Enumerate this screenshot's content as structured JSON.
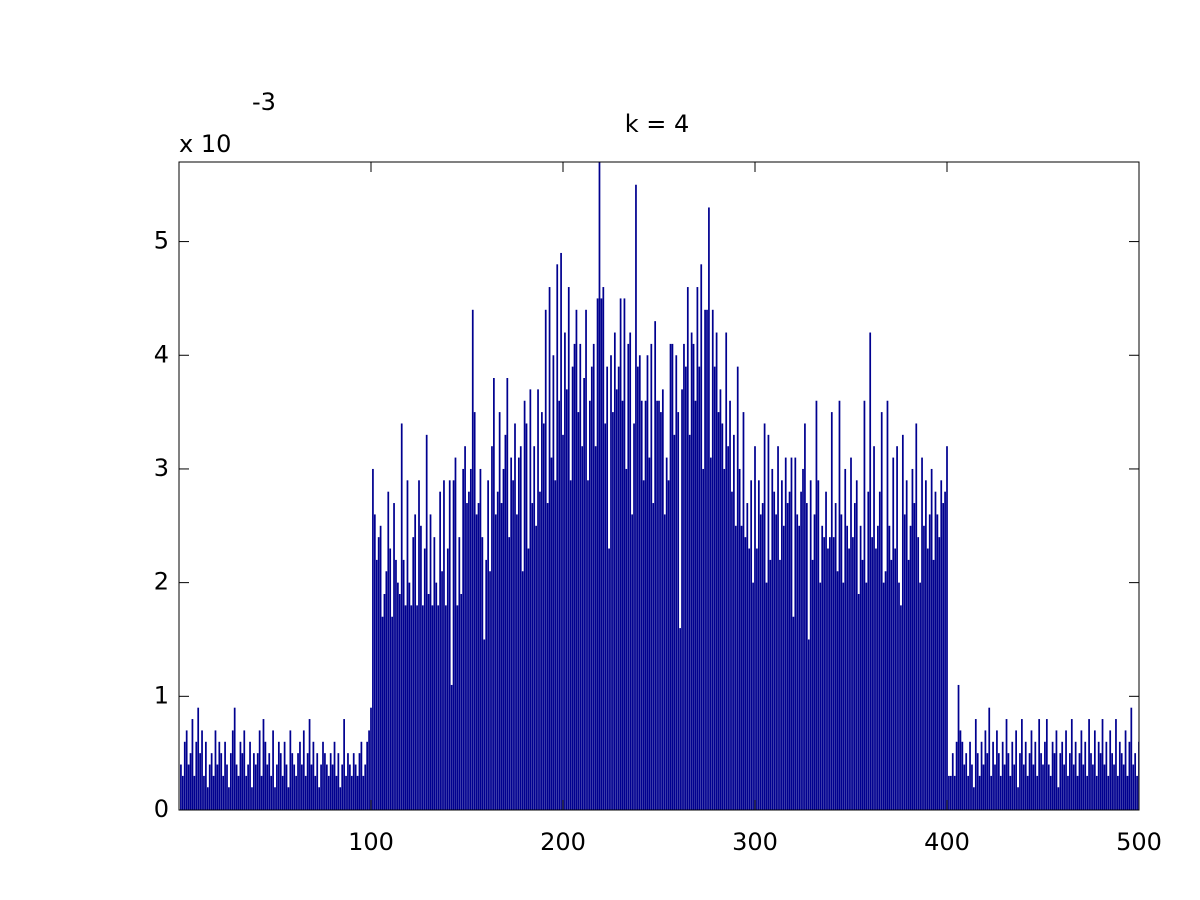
{
  "chart_data": {
    "type": "bar",
    "title": "k = 4",
    "scale_label": "x 10",
    "scale_exponent": "-3",
    "color": "#00008f",
    "x": [
      1,
      2,
      3,
      4,
      5,
      6,
      7,
      8,
      9,
      10,
      11,
      12,
      13,
      14,
      15,
      16,
      17,
      18,
      19,
      20,
      21,
      22,
      23,
      24,
      25,
      26,
      27,
      28,
      29,
      30,
      31,
      32,
      33,
      34,
      35,
      36,
      37,
      38,
      39,
      40,
      41,
      42,
      43,
      44,
      45,
      46,
      47,
      48,
      49,
      50,
      51,
      52,
      53,
      54,
      55,
      56,
      57,
      58,
      59,
      60,
      61,
      62,
      63,
      64,
      65,
      66,
      67,
      68,
      69,
      70,
      71,
      72,
      73,
      74,
      75,
      76,
      77,
      78,
      79,
      80,
      81,
      82,
      83,
      84,
      85,
      86,
      87,
      88,
      89,
      90,
      91,
      92,
      93,
      94,
      95,
      96,
      97,
      98,
      99,
      100,
      101,
      102,
      103,
      104,
      105,
      106,
      107,
      108,
      109,
      110,
      111,
      112,
      113,
      114,
      115,
      116,
      117,
      118,
      119,
      120,
      121,
      122,
      123,
      124,
      125,
      126,
      127,
      128,
      129,
      130,
      131,
      132,
      133,
      134,
      135,
      136,
      137,
      138,
      139,
      140,
      141,
      142,
      143,
      144,
      145,
      146,
      147,
      148,
      149,
      150,
      151,
      152,
      153,
      154,
      155,
      156,
      157,
      158,
      159,
      160,
      161,
      162,
      163,
      164,
      165,
      166,
      167,
      168,
      169,
      170,
      171,
      172,
      173,
      174,
      175,
      176,
      177,
      178,
      179,
      180,
      181,
      182,
      183,
      184,
      185,
      186,
      187,
      188,
      189,
      190,
      191,
      192,
      193,
      194,
      195,
      196,
      197,
      198,
      199,
      200,
      201,
      202,
      203,
      204,
      205,
      206,
      207,
      208,
      209,
      210,
      211,
      212,
      213,
      214,
      215,
      216,
      217,
      218,
      219,
      220,
      221,
      222,
      223,
      224,
      225,
      226,
      227,
      228,
      229,
      230,
      231,
      232,
      233,
      234,
      235,
      236,
      237,
      238,
      239,
      240,
      241,
      242,
      243,
      244,
      245,
      246,
      247,
      248,
      249,
      250,
      251,
      252,
      253,
      254,
      255,
      256,
      257,
      258,
      259,
      260,
      261,
      262,
      263,
      264,
      265,
      266,
      267,
      268,
      269,
      270,
      271,
      272,
      273,
      274,
      275,
      276,
      277,
      278,
      279,
      280,
      281,
      282,
      283,
      284,
      285,
      286,
      287,
      288,
      289,
      290,
      291,
      292,
      293,
      294,
      295,
      296,
      297,
      298,
      299,
      300,
      301,
      302,
      303,
      304,
      305,
      306,
      307,
      308,
      309,
      310,
      311,
      312,
      313,
      314,
      315,
      316,
      317,
      318,
      319,
      320,
      321,
      322,
      323,
      324,
      325,
      326,
      327,
      328,
      329,
      330,
      331,
      332,
      333,
      334,
      335,
      336,
      337,
      338,
      339,
      340,
      341,
      342,
      343,
      344,
      345,
      346,
      347,
      348,
      349,
      350,
      351,
      352,
      353,
      354,
      355,
      356,
      357,
      358,
      359,
      360,
      361,
      362,
      363,
      364,
      365,
      366,
      367,
      368,
      369,
      370,
      371,
      372,
      373,
      374,
      375,
      376,
      377,
      378,
      379,
      380,
      381,
      382,
      383,
      384,
      385,
      386,
      387,
      388,
      389,
      390,
      391,
      392,
      393,
      394,
      395,
      396,
      397,
      398,
      399,
      400,
      401,
      402,
      403,
      404,
      405,
      406,
      407,
      408,
      409,
      410,
      411,
      412,
      413,
      414,
      415,
      416,
      417,
      418,
      419,
      420,
      421,
      422,
      423,
      424,
      425,
      426,
      427,
      428,
      429,
      430,
      431,
      432,
      433,
      434,
      435,
      436,
      437,
      438,
      439,
      440,
      441,
      442,
      443,
      444,
      445,
      446,
      447,
      448,
      449,
      450,
      451,
      452,
      453,
      454,
      455,
      456,
      457,
      458,
      459,
      460,
      461,
      462,
      463,
      464,
      465,
      466,
      467,
      468,
      469,
      470,
      471,
      472,
      473,
      474,
      475,
      476,
      477,
      478,
      479,
      480,
      481,
      482,
      483,
      484,
      485,
      486,
      487,
      488,
      489,
      490,
      491,
      492,
      493,
      494,
      495,
      496,
      497,
      498,
      499,
      500
    ],
    "values": [
      0.4,
      0.3,
      0.6,
      0.7,
      0.4,
      0.5,
      0.8,
      0.3,
      0.6,
      0.9,
      0.5,
      0.7,
      0.3,
      0.6,
      0.2,
      0.4,
      0.5,
      0.3,
      0.7,
      0.4,
      0.6,
      0.5,
      0.3,
      0.6,
      0.4,
      0.2,
      0.5,
      0.7,
      0.9,
      0.4,
      0.3,
      0.6,
      0.5,
      0.7,
      0.3,
      0.4,
      0.6,
      0.2,
      0.5,
      0.4,
      0.5,
      0.7,
      0.3,
      0.8,
      0.6,
      0.4,
      0.5,
      0.3,
      0.7,
      0.2,
      0.4,
      0.6,
      0.5,
      0.3,
      0.6,
      0.4,
      0.2,
      0.7,
      0.5,
      0.4,
      0.3,
      0.5,
      0.6,
      0.4,
      0.7,
      0.3,
      0.5,
      0.8,
      0.4,
      0.6,
      0.3,
      0.5,
      0.2,
      0.4,
      0.6,
      0.5,
      0.4,
      0.3,
      0.5,
      0.4,
      0.6,
      0.3,
      0.5,
      0.2,
      0.4,
      0.8,
      0.3,
      0.5,
      0.4,
      0.3,
      0.5,
      0.4,
      0.3,
      0.5,
      0.6,
      0.3,
      0.4,
      0.6,
      0.7,
      0.9,
      3.0,
      2.6,
      2.2,
      2.4,
      2.5,
      1.7,
      1.9,
      2.1,
      2.8,
      2.3,
      1.7,
      2.7,
      2.2,
      2.0,
      1.9,
      3.4,
      2.2,
      1.8,
      2.9,
      2.0,
      1.8,
      2.4,
      2.6,
      1.8,
      2.9,
      2.5,
      1.8,
      2.3,
      3.3,
      1.9,
      2.6,
      1.8,
      2.4,
      2.0,
      1.8,
      2.8,
      2.1,
      2.9,
      1.8,
      2.3,
      2.9,
      1.1,
      2.9,
      3.1,
      1.8,
      2.4,
      1.9,
      3.0,
      3.2,
      2.7,
      2.8,
      3.0,
      4.4,
      3.5,
      2.6,
      2.7,
      3.0,
      2.4,
      1.5,
      2.2,
      2.9,
      2.1,
      3.2,
      3.8,
      2.6,
      2.8,
      3.5,
      2.7,
      3.0,
      3.3,
      3.8,
      2.4,
      3.1,
      2.9,
      3.4,
      2.6,
      3.1,
      3.2,
      2.1,
      3.6,
      3.4,
      2.3,
      3.7,
      2.7,
      3.2,
      2.5,
      3.7,
      2.8,
      3.5,
      3.4,
      4.4,
      2.7,
      4.6,
      3.1,
      4.0,
      2.9,
      4.8,
      3.6,
      4.9,
      3.3,
      4.2,
      3.7,
      4.6,
      2.9,
      3.9,
      4.1,
      4.4,
      3.5,
      4.1,
      3.2,
      3.8,
      4.4,
      2.9,
      3.6,
      3.9,
      4.1,
      3.2,
      4.5,
      5.7,
      4.5,
      4.6,
      3.4,
      3.9,
      2.3,
      4.0,
      3.5,
      4.2,
      3.7,
      3.9,
      4.5,
      3.6,
      4.5,
      3.0,
      4.1,
      4.2,
      2.6,
      3.4,
      5.5,
      3.9,
      4.0,
      3.6,
      2.9,
      3.6,
      4.0,
      3.1,
      4.1,
      2.7,
      4.3,
      3.6,
      3.6,
      3.5,
      3.7,
      2.6,
      3.1,
      2.9,
      4.1,
      4.1,
      3.3,
      4.0,
      3.5,
      1.6,
      3.7,
      4.1,
      3.9,
      4.6,
      3.3,
      4.2,
      4.1,
      3.6,
      4.6,
      3.9,
      4.8,
      3.0,
      4.4,
      4.4,
      5.3,
      3.1,
      4.4,
      3.9,
      4.2,
      3.5,
      3.7,
      3.4,
      3.0,
      4.2,
      3.2,
      3.6,
      2.8,
      3.3,
      2.5,
      3.9,
      3.0,
      2.5,
      3.5,
      2.4,
      2.7,
      2.3,
      2.9,
      2.0,
      3.2,
      2.3,
      2.9,
      2.6,
      2.7,
      3.4,
      2.0,
      3.3,
      2.2,
      3.0,
      2.8,
      2.6,
      3.2,
      2.2,
      2.9,
      2.5,
      3.1,
      2.7,
      2.8,
      3.1,
      1.7,
      3.1,
      2.6,
      2.5,
      2.8,
      3.0,
      3.4,
      2.7,
      1.5,
      2.9,
      2.2,
      2.6,
      3.6,
      2.9,
      2.0,
      2.5,
      2.4,
      2.8,
      2.3,
      2.4,
      3.5,
      2.4,
      2.7,
      2.1,
      3.6,
      2.6,
      2.0,
      3.0,
      2.5,
      2.3,
      3.1,
      2.4,
      2.7,
      2.9,
      1.9,
      2.5,
      2.2,
      3.6,
      2.0,
      2.8,
      4.2,
      2.4,
      3.2,
      2.3,
      2.5,
      2.8,
      3.5,
      2.0,
      2.1,
      3.6,
      2.5,
      2.2,
      3.1,
      2.3,
      3.2,
      2.0,
      1.8,
      3.3,
      2.6,
      2.9,
      2.2,
      2.5,
      3.0,
      2.7,
      3.4,
      2.4,
      2.0,
      3.1,
      2.5,
      2.9,
      2.3,
      2.6,
      3.0,
      2.2,
      2.8,
      2.6,
      2.4,
      2.9,
      2.7,
      2.8,
      3.2,
      0.3,
      0.3,
      0.5,
      0.3,
      0.6,
      1.1,
      0.7,
      0.6,
      0.4,
      0.5,
      0.3,
      0.6,
      0.4,
      0.2,
      0.8,
      0.5,
      0.3,
      0.6,
      0.4,
      0.7,
      0.5,
      0.9,
      0.3,
      0.6,
      0.4,
      0.7,
      0.5,
      0.3,
      0.6,
      0.4,
      0.8,
      0.5,
      0.3,
      0.6,
      0.4,
      0.7,
      0.2,
      0.5,
      0.8,
      0.4,
      0.6,
      0.3,
      0.5,
      0.7,
      0.4,
      0.6,
      0.3,
      0.8,
      0.5,
      0.4,
      0.6,
      0.8,
      0.4,
      0.3,
      0.6,
      0.5,
      0.7,
      0.2,
      0.5,
      0.6,
      0.4,
      0.7,
      0.3,
      0.5,
      0.8,
      0.4,
      0.6,
      0.3,
      0.5,
      0.7,
      0.4,
      0.6,
      0.3,
      0.8,
      0.5,
      0.4,
      0.7,
      0.3,
      0.6,
      0.5,
      0.8,
      0.4,
      0.6,
      0.3,
      0.7,
      0.5,
      0.4,
      0.8,
      0.3,
      0.6,
      0.5,
      0.4,
      0.7,
      0.3,
      0.6,
      0.9,
      0.4,
      0.5,
      0.3,
      0.6
    ],
    "xlim": [
      0,
      500
    ],
    "xticks": [
      100,
      200,
      300,
      400,
      500
    ],
    "ylim": [
      0,
      5.7
    ],
    "yticks": [
      0,
      1,
      2,
      3,
      4,
      5
    ]
  }
}
